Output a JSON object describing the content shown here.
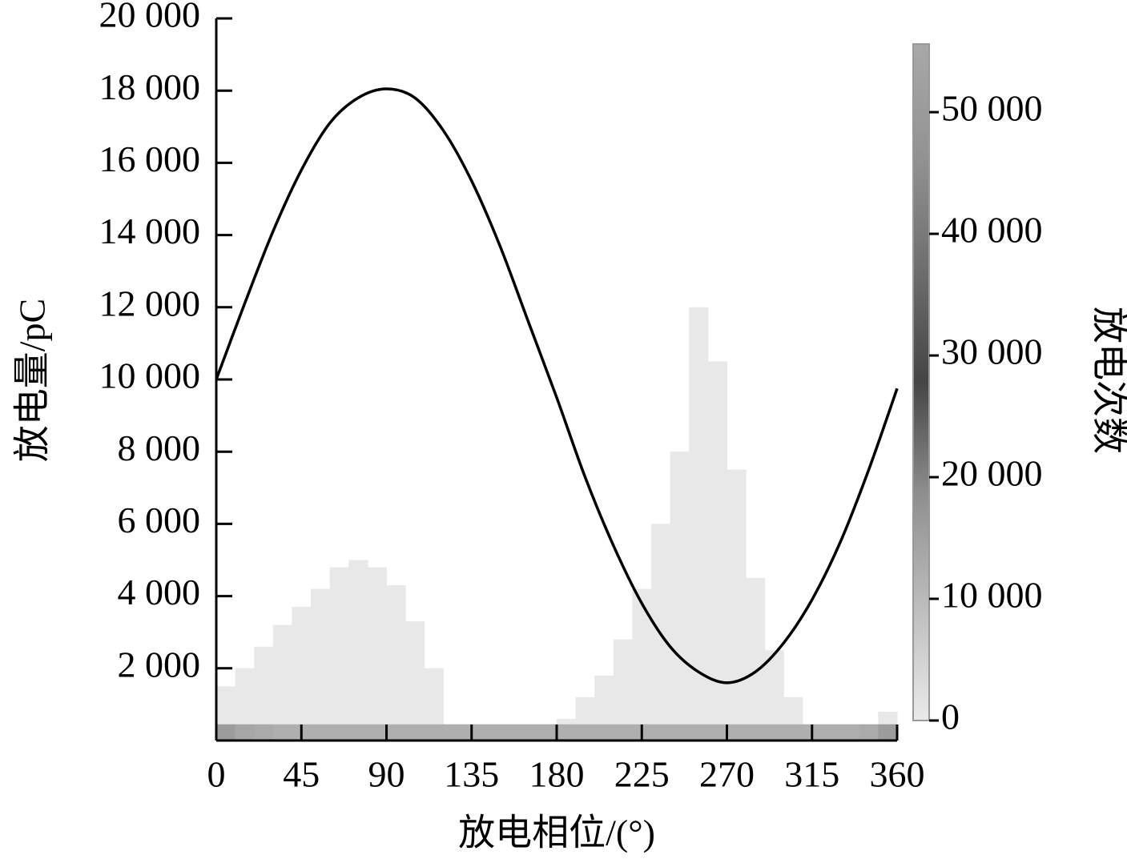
{
  "chart_data": {
    "type": "heatmap",
    "xlabel": "放电相位/(°)",
    "ylabel": "放电量/pC",
    "colorbar_label": "放电次数",
    "xlim": [
      0,
      360
    ],
    "xticks": [
      0,
      45,
      90,
      135,
      180,
      225,
      270,
      315,
      360
    ],
    "ylim": [
      0,
      20000
    ],
    "yticks": [
      {
        "value": 2000,
        "label": "2 000"
      },
      {
        "value": 4000,
        "label": "4 000"
      },
      {
        "value": 6000,
        "label": "6 000"
      },
      {
        "value": 8000,
        "label": "8 000"
      },
      {
        "value": 10000,
        "label": "10 000"
      },
      {
        "value": 12000,
        "label": "12 000"
      },
      {
        "value": 14000,
        "label": "14 000"
      },
      {
        "value": 16000,
        "label": "16 000"
      },
      {
        "value": 18000,
        "label": "18 000"
      },
      {
        "value": 20000,
        "label": "20 000"
      }
    ],
    "clim": [
      0,
      55600
    ],
    "cticks": [
      0,
      {
        "value": 10000,
        "label": "10 000"
      },
      {
        "value": 20000,
        "label": "20 000"
      },
      {
        "value": 30000,
        "label": "30 000"
      },
      {
        "value": 40000,
        "label": "40 000"
      },
      {
        "value": 50000,
        "label": "50 000"
      }
    ],
    "colormap": [
      "#eaeaea",
      "#bdbdbd",
      "#8f8f8f",
      "#454545",
      "#6e6e6e",
      "#929292",
      "#a8a8a8"
    ],
    "columns": {
      "bins": [
        0,
        10,
        20,
        30,
        40,
        50,
        60,
        70,
        80,
        90,
        100,
        110,
        120,
        130,
        140,
        150,
        160,
        170,
        180,
        190,
        200,
        210,
        220,
        230,
        240,
        250,
        260,
        270,
        280,
        290,
        300,
        310,
        320,
        330,
        340,
        350,
        360
      ],
      "charge_max": [
        1500,
        2000,
        2600,
        3200,
        3700,
        4200,
        4800,
        5000,
        4800,
        4300,
        3300,
        2000,
        400,
        0,
        0,
        0,
        0,
        0,
        600,
        1200,
        1800,
        2800,
        4200,
        6000,
        8000,
        12000,
        10500,
        7500,
        4500,
        2500,
        1200,
        0,
        0,
        0,
        0,
        800
      ],
      "count": 400
    },
    "base_band": {
      "charge_max": 450,
      "counts": [
        16000,
        14000,
        13000,
        12000,
        12000,
        12000,
        12000,
        12000,
        12000,
        12000,
        12000,
        12000,
        12000,
        12000,
        12000,
        12000,
        12000,
        12000,
        12000,
        12000,
        12000,
        12000,
        12000,
        12000,
        12000,
        12000,
        12000,
        12000,
        12000,
        12000,
        12000,
        12000,
        12000,
        12000,
        13000,
        16000
      ]
    },
    "curve": {
      "color": "#000000",
      "x": [
        0,
        15,
        30,
        45,
        60,
        75,
        90,
        105,
        120,
        135,
        150,
        165,
        180,
        195,
        210,
        225,
        240,
        255,
        270,
        285,
        300,
        315,
        330,
        345,
        360
      ],
      "values": [
        10000,
        12100,
        14100,
        15800,
        17100,
        17800,
        18050,
        17800,
        16900,
        15500,
        13700,
        11600,
        9500,
        7300,
        5400,
        3800,
        2600,
        1900,
        1600,
        1900,
        2700,
        3900,
        5500,
        7500,
        9750
      ]
    }
  }
}
